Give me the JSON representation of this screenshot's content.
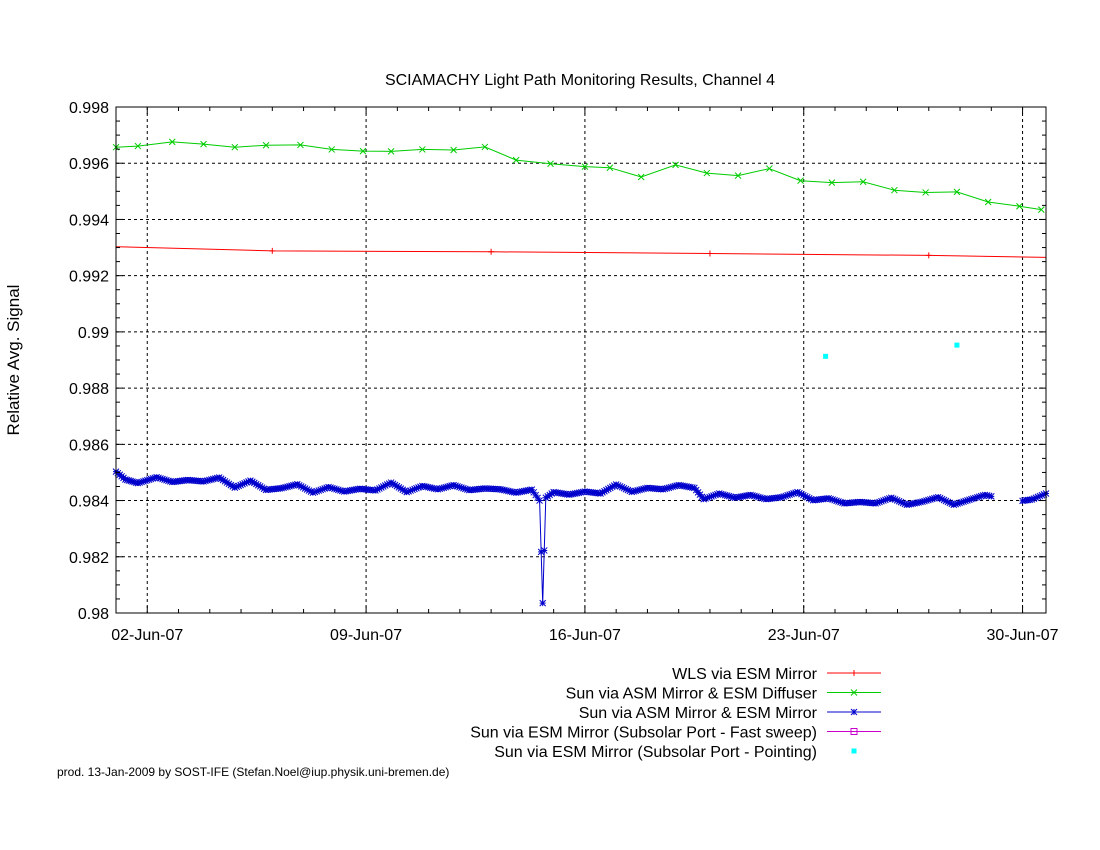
{
  "chart_data": {
    "type": "line",
    "title": "SCIAMACHY Light Path Monitoring Results, Channel 4",
    "xlabel": "",
    "ylabel": "Relative Avg. Signal",
    "x_unit": "days, June 2007",
    "xlim": [
      1.0,
      30.75
    ],
    "ylim": [
      0.98,
      0.998
    ],
    "grid": true,
    "x_ticks": [
      {
        "value": 2,
        "label": "02-Jun-07"
      },
      {
        "value": 9,
        "label": "09-Jun-07"
      },
      {
        "value": 16,
        "label": "16-Jun-07"
      },
      {
        "value": 23,
        "label": "23-Jun-07"
      },
      {
        "value": 30,
        "label": "30-Jun-07"
      }
    ],
    "y_ticks": [
      {
        "value": 0.98,
        "label": "0.98"
      },
      {
        "value": 0.982,
        "label": "0.982"
      },
      {
        "value": 0.984,
        "label": "0.984"
      },
      {
        "value": 0.986,
        "label": "0.986"
      },
      {
        "value": 0.988,
        "label": "0.988"
      },
      {
        "value": 0.99,
        "label": "0.99"
      },
      {
        "value": 0.992,
        "label": "0.992"
      },
      {
        "value": 0.994,
        "label": "0.994"
      },
      {
        "value": 0.996,
        "label": "0.996"
      },
      {
        "value": 0.998,
        "label": "0.998"
      }
    ],
    "legend_position": "below-right",
    "series": [
      {
        "name": "WLS via ESM Mirror",
        "color": "#ff0000",
        "marker": "plus",
        "line": true,
        "points": [
          [
            1.0,
            0.99303
          ],
          [
            6.0,
            0.99288
          ],
          [
            13.0,
            0.99285
          ],
          [
            20.0,
            0.99279
          ],
          [
            27.0,
            0.99272
          ],
          [
            30.75,
            0.99265
          ]
        ]
      },
      {
        "name": "Sun via ASM Mirror & ESM Diffuser",
        "color": "#00cc00",
        "marker": "x",
        "line": true,
        "points": [
          [
            1.0,
            0.99657
          ],
          [
            1.7,
            0.99661
          ],
          [
            2.8,
            0.99676
          ],
          [
            3.8,
            0.99668
          ],
          [
            4.8,
            0.99657
          ],
          [
            5.8,
            0.99664
          ],
          [
            6.9,
            0.99665
          ],
          [
            7.9,
            0.99649
          ],
          [
            8.9,
            0.99643
          ],
          [
            9.8,
            0.99642
          ],
          [
            10.8,
            0.99649
          ],
          [
            11.8,
            0.99647
          ],
          [
            12.8,
            0.99658
          ],
          [
            13.8,
            0.99611
          ],
          [
            14.9,
            0.99598
          ],
          [
            16.0,
            0.99588
          ],
          [
            16.8,
            0.99584
          ],
          [
            17.8,
            0.99551
          ],
          [
            18.9,
            0.99594
          ],
          [
            19.9,
            0.99565
          ],
          [
            20.9,
            0.99556
          ],
          [
            21.9,
            0.99581
          ],
          [
            22.9,
            0.99538
          ],
          [
            23.9,
            0.99531
          ],
          [
            24.9,
            0.99534
          ],
          [
            25.9,
            0.99504
          ],
          [
            26.9,
            0.99496
          ],
          [
            27.9,
            0.99498
          ],
          [
            28.9,
            0.99462
          ],
          [
            29.9,
            0.99447
          ],
          [
            30.6,
            0.99435
          ]
        ]
      },
      {
        "name": "Sun via ASM Mirror & ESM Mirror",
        "color": "#0000cc",
        "marker": "star",
        "line": true,
        "segments": [
          [
            [
              1.0,
              0.98503
            ],
            [
              1.3,
              0.98475
            ],
            [
              1.7,
              0.98462
            ],
            [
              2.3,
              0.98483
            ],
            [
              2.8,
              0.98466
            ],
            [
              3.3,
              0.98473
            ],
            [
              3.8,
              0.98468
            ],
            [
              4.3,
              0.98482
            ],
            [
              4.8,
              0.98446
            ],
            [
              5.3,
              0.98471
            ],
            [
              5.8,
              0.98438
            ],
            [
              6.3,
              0.98444
            ],
            [
              6.8,
              0.98458
            ],
            [
              7.3,
              0.98428
            ],
            [
              7.8,
              0.98448
            ],
            [
              8.3,
              0.98432
            ],
            [
              8.8,
              0.98442
            ],
            [
              9.3,
              0.98436
            ],
            [
              9.8,
              0.98464
            ],
            [
              10.3,
              0.9843
            ],
            [
              10.8,
              0.98452
            ],
            [
              11.3,
              0.9844
            ],
            [
              11.8,
              0.98455
            ],
            [
              12.3,
              0.98437
            ],
            [
              12.8,
              0.98443
            ],
            [
              13.3,
              0.9844
            ],
            [
              13.8,
              0.98428
            ],
            [
              14.3,
              0.98439
            ],
            [
              14.55,
              0.984
            ],
            [
              14.65,
              0.98035
            ],
            [
              14.75,
              0.9841
            ],
            [
              15.0,
              0.9843
            ],
            [
              15.5,
              0.98421
            ],
            [
              16.0,
              0.98432
            ],
            [
              16.5,
              0.98425
            ],
            [
              17.0,
              0.98457
            ],
            [
              17.5,
              0.98431
            ],
            [
              18.0,
              0.98445
            ],
            [
              18.5,
              0.9844
            ],
            [
              19.0,
              0.98455
            ],
            [
              19.5,
              0.98445
            ],
            [
              19.8,
              0.98405
            ],
            [
              20.3,
              0.98425
            ],
            [
              20.8,
              0.9841
            ],
            [
              21.3,
              0.9842
            ],
            [
              21.8,
              0.98405
            ],
            [
              22.3,
              0.98412
            ],
            [
              22.8,
              0.9843
            ],
            [
              23.3,
              0.98401
            ],
            [
              23.8,
              0.98408
            ],
            [
              24.3,
              0.9839
            ],
            [
              24.8,
              0.98395
            ],
            [
              25.3,
              0.9839
            ],
            [
              25.8,
              0.9841
            ],
            [
              26.3,
              0.98385
            ],
            [
              26.8,
              0.98396
            ],
            [
              27.3,
              0.98412
            ],
            [
              27.8,
              0.98385
            ],
            [
              28.3,
              0.98403
            ],
            [
              28.8,
              0.9842
            ],
            [
              29.0,
              0.98415
            ]
          ],
          [
            [
              30.0,
              0.98399
            ],
            [
              30.3,
              0.98404
            ],
            [
              30.75,
              0.98425
            ]
          ]
        ]
      },
      {
        "name": "Sun via ESM Mirror (Subsolar Port - Fast sweep)",
        "color": "#cc00cc",
        "marker": "square",
        "line": true,
        "points": []
      },
      {
        "name": "Sun via ESM Mirror (Subsolar Port - Pointing)",
        "color": "#00ffff",
        "marker": "dot",
        "line": false,
        "points": [
          [
            23.7,
            0.98913
          ],
          [
            27.9,
            0.98953
          ]
        ]
      }
    ]
  },
  "footer": "prod. 13-Jan-2009 by SOST-IFE (Stefan.Noel@iup.physik.uni-bremen.de)"
}
